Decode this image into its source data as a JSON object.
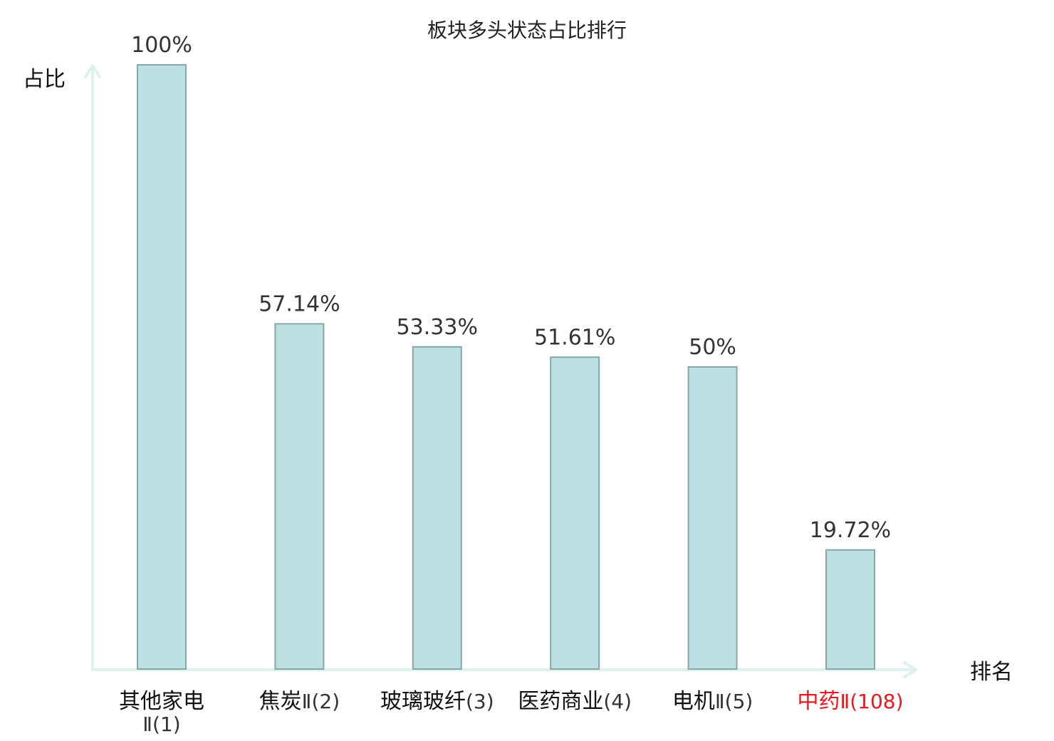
{
  "chart_data": {
    "type": "bar",
    "title": "板块多头状态占比排行",
    "xlabel": "排名",
    "ylabel": "占比",
    "ylim": [
      0,
      100
    ],
    "categories": [
      {
        "name": "其他家电",
        "rank": "Ⅱ(1)",
        "wrap": true,
        "highlight": false
      },
      {
        "name": "焦炭",
        "rank": "Ⅱ(2)",
        "wrap": false,
        "highlight": false
      },
      {
        "name": "玻璃玻纤",
        "rank": "(3)",
        "wrap": false,
        "highlight": false
      },
      {
        "name": "医药商业",
        "rank": "(4)",
        "wrap": false,
        "highlight": false
      },
      {
        "name": "电机",
        "rank": "Ⅱ(5)",
        "wrap": false,
        "highlight": false
      },
      {
        "name": "中药",
        "rank": "Ⅱ(108)",
        "wrap": false,
        "highlight": true
      }
    ],
    "values": [
      100,
      57.14,
      53.33,
      51.61,
      50,
      19.72
    ],
    "value_labels": [
      "100%",
      "57.14%",
      "53.33%",
      "51.61%",
      "50%",
      "19.72%"
    ],
    "colors": {
      "bar_fill": "#bde0e3",
      "bar_stroke": "#86a7aa",
      "axis": "#dff1ef",
      "label_default": "#111111",
      "rank_default": "#333333",
      "highlight": "#e8191c"
    }
  }
}
